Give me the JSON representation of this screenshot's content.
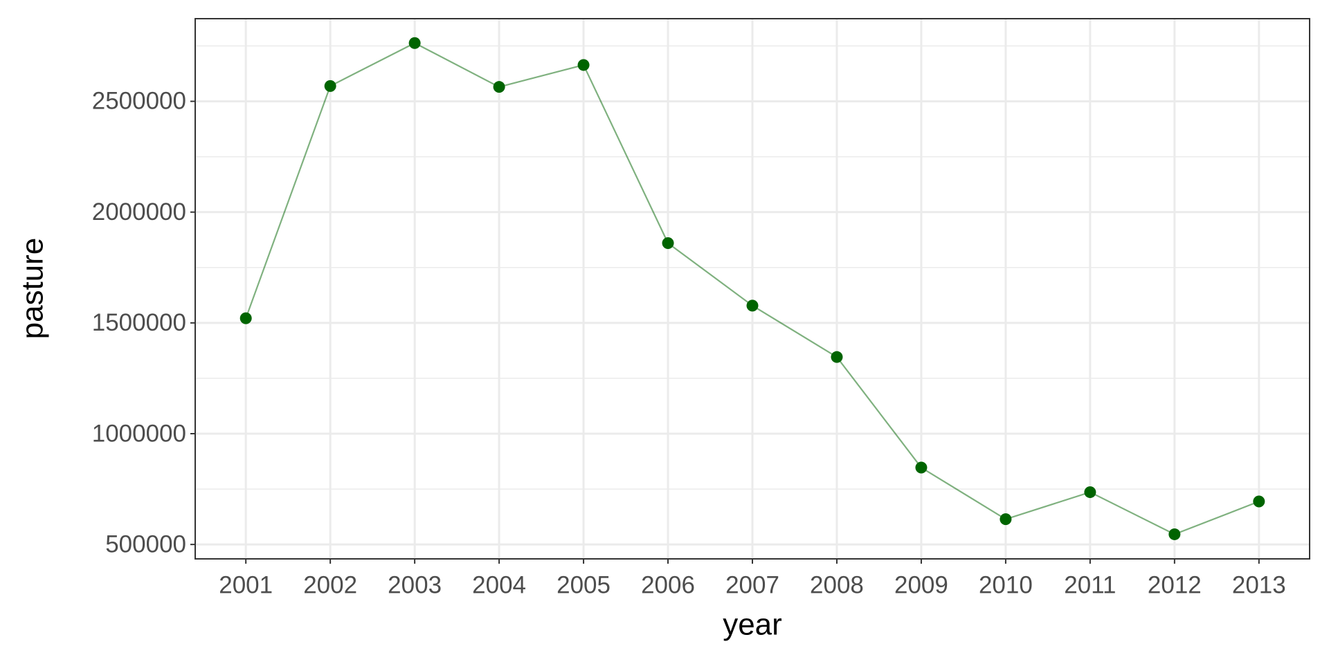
{
  "chart_data": {
    "type": "line",
    "x_label": "year",
    "y_label": "pasture",
    "x": [
      2001,
      2002,
      2003,
      2004,
      2005,
      2006,
      2007,
      2008,
      2009,
      2010,
      2011,
      2012,
      2013
    ],
    "series": [
      {
        "name": "pasture",
        "color": "#006400",
        "values": [
          1521000,
          2569000,
          2763000,
          2565000,
          2664000,
          1860000,
          1578000,
          1346000,
          847000,
          614000,
          736000,
          546000,
          694000
        ]
      }
    ],
    "xlim": [
      2000.4,
      2013.6
    ],
    "xticks": [
      2001,
      2002,
      2003,
      2004,
      2005,
      2006,
      2007,
      2008,
      2009,
      2010,
      2011,
      2012,
      2013
    ],
    "ylim": [
      435000,
      2873000
    ],
    "yticks": [
      500000,
      1000000,
      1500000,
      2000000,
      2500000
    ],
    "minor_yticks": [
      750000,
      1250000,
      1750000,
      2250000,
      2750000
    ],
    "grid": true
  }
}
